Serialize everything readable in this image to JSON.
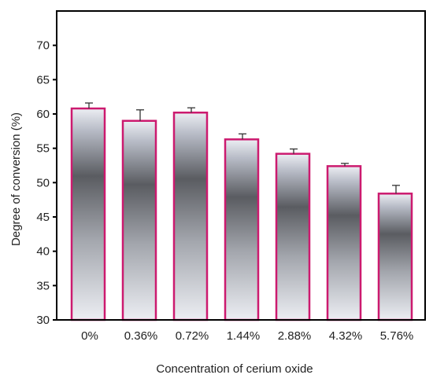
{
  "chart_data": {
    "type": "bar",
    "categories": [
      "0%",
      "0.36%",
      "0.72%",
      "1.44%",
      "2.88%",
      "4.32%",
      "5.76%"
    ],
    "values": [
      60.8,
      59.0,
      60.2,
      56.3,
      54.2,
      52.4,
      48.4
    ],
    "error_bars": [
      0.8,
      1.6,
      0.7,
      0.8,
      0.7,
      0.4,
      1.2
    ],
    "xlabel": "Concentration of cerium oxide",
    "ylabel": "Degree of conversion (%)",
    "ylim": [
      30,
      75
    ],
    "yticks": [
      "30",
      "35",
      "40",
      "45",
      "50",
      "55",
      "60",
      "65",
      "70"
    ],
    "grid": false,
    "legend": "none",
    "colors": {
      "bar_border": "#cc1a6f",
      "bar_gradient_light": "#eceef3",
      "bar_gradient_mid": "#b9bdc8",
      "bar_gradient_dark": "#5a5c61",
      "axis": "#000000"
    }
  }
}
